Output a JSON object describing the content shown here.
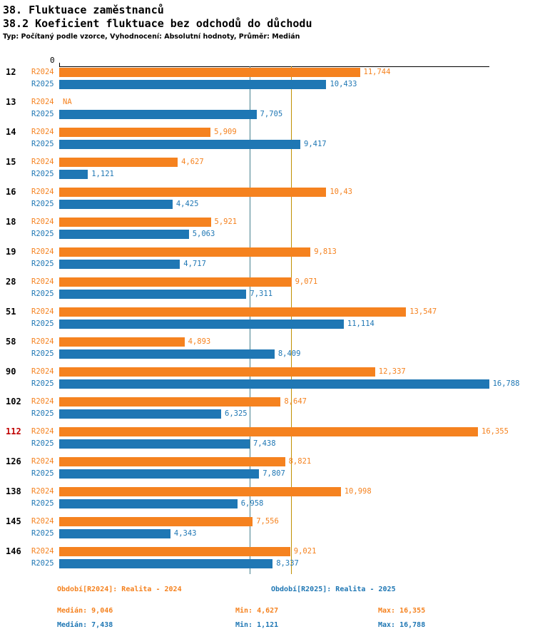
{
  "header": {
    "title": "38. Fluktuace zaměstnanců",
    "subtitle": "38.2 Koeficient fluktuace bez odchodů do důchodu",
    "meta": "Typ: Počítaný podle vzorce, Vyhodnocení: Absolutní hodnoty, Průměr: Medián"
  },
  "chart_data": {
    "type": "bar",
    "orientation": "horizontal",
    "axis": {
      "min_label": "0",
      "min": 0,
      "max": 16.8
    },
    "grid": false,
    "legend_position": "bottom",
    "series": [
      {
        "key": "r2024",
        "label": "R2024"
      },
      {
        "key": "r2025",
        "label": "R2025"
      }
    ],
    "colors": {
      "r2024": "#F5821F",
      "r2025": "#1F77B4",
      "median_line_r2024": "#BF9000",
      "median_line_r2025": "#45818E",
      "highlight": "#C00000"
    },
    "medians": {
      "r2024": 9.046,
      "r2025": 7.438
    },
    "highlighted": [
      "112"
    ],
    "categories": [
      {
        "label": "12",
        "r2024": 11.744,
        "r2024_display": "11,744",
        "r2025": 10.433,
        "r2025_display": "10,433"
      },
      {
        "label": "13",
        "r2024": null,
        "r2024_display": "NA",
        "r2025": 7.705,
        "r2025_display": "7,705"
      },
      {
        "label": "14",
        "r2024": 5.909,
        "r2024_display": "5,909",
        "r2025": 9.417,
        "r2025_display": "9,417"
      },
      {
        "label": "15",
        "r2024": 4.627,
        "r2024_display": "4,627",
        "r2025": 1.121,
        "r2025_display": "1,121"
      },
      {
        "label": "16",
        "r2024": 10.43,
        "r2024_display": "10,43",
        "r2025": 4.425,
        "r2025_display": "4,425"
      },
      {
        "label": "18",
        "r2024": 5.921,
        "r2024_display": "5,921",
        "r2025": 5.063,
        "r2025_display": "5,063"
      },
      {
        "label": "19",
        "r2024": 9.813,
        "r2024_display": "9,813",
        "r2025": 4.717,
        "r2025_display": "4,717"
      },
      {
        "label": "28",
        "r2024": 9.071,
        "r2024_display": "9,071",
        "r2025": 7.311,
        "r2025_display": "7,311"
      },
      {
        "label": "51",
        "r2024": 13.547,
        "r2024_display": "13,547",
        "r2025": 11.114,
        "r2025_display": "11,114"
      },
      {
        "label": "58",
        "r2024": 4.893,
        "r2024_display": "4,893",
        "r2025": 8.409,
        "r2025_display": "8,409"
      },
      {
        "label": "90",
        "r2024": 12.337,
        "r2024_display": "12,337",
        "r2025": 16.788,
        "r2025_display": "16,788"
      },
      {
        "label": "102",
        "r2024": 8.647,
        "r2024_display": "8,647",
        "r2025": 6.325,
        "r2025_display": "6,325"
      },
      {
        "label": "112",
        "r2024": 16.355,
        "r2024_display": "16,355",
        "r2025": 7.438,
        "r2025_display": "7,438"
      },
      {
        "label": "126",
        "r2024": 8.821,
        "r2024_display": "8,821",
        "r2025": 7.807,
        "r2025_display": "7,807"
      },
      {
        "label": "138",
        "r2024": 10.998,
        "r2024_display": "10,998",
        "r2025": 6.958,
        "r2025_display": "6,958"
      },
      {
        "label": "145",
        "r2024": 7.556,
        "r2024_display": "7,556",
        "r2025": 4.343,
        "r2025_display": "4,343"
      },
      {
        "label": "146",
        "r2024": 9.021,
        "r2024_display": "9,021",
        "r2025": 8.337,
        "r2025_display": "8,337"
      }
    ]
  },
  "legend": {
    "r2024": "Období[R2024]: Realita - 2024",
    "r2025": "Období[R2025]: Realita - 2025"
  },
  "stats": {
    "r2024": {
      "median": "Medián: 9,046",
      "min": "Min: 4,627",
      "max": "Max: 16,355"
    },
    "r2025": {
      "median": "Medián: 7,438",
      "min": "Min: 1,121",
      "max": "Max: 16,788"
    }
  }
}
